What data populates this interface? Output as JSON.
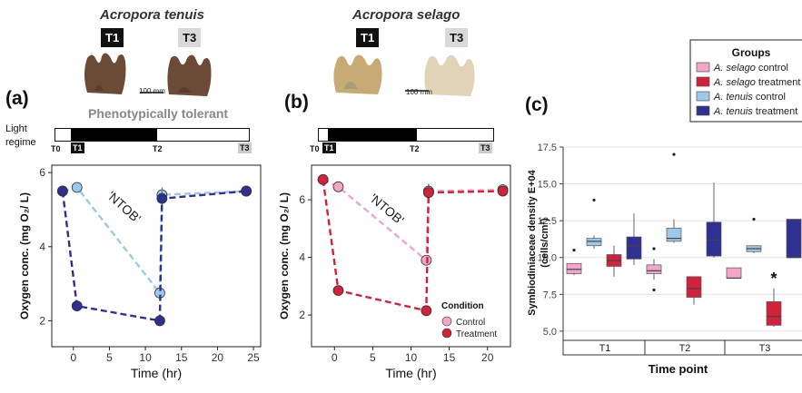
{
  "header": {
    "species_left": "Acropora tenuis",
    "species_right": "Acropora selago",
    "tag_t1": "T1",
    "tag_t3": "T3",
    "scale_label": "100 mm",
    "pheno_label": "Phenotypically tolerant",
    "regime_label_line1": "Light",
    "regime_label_line2": "regime"
  },
  "panel_labels": {
    "a": "(a)",
    "b": "(b)",
    "c": "(c)"
  },
  "timeline": {
    "t0": "T0",
    "t1": "T1",
    "t2": "T2",
    "t3": "T3"
  },
  "colors": {
    "tenuis_control": "#9cc9ea",
    "tenuis_treatment": "#2e3092",
    "selago_control": "#f2a6c8",
    "selago_treatment": "#d2213a"
  },
  "chart_data": [
    {
      "id": "a",
      "type": "line",
      "xlabel": "Time (hr)",
      "ylabel": "Oxygen conc. (mg O₂/ L)",
      "xlim": [
        -3,
        26
      ],
      "ylim": [
        1.3,
        6.2
      ],
      "xticks": [
        0,
        5,
        10,
        15,
        20,
        25
      ],
      "yticks": [
        2,
        4,
        6
      ],
      "annotation": "'NTOB'",
      "series": [
        {
          "role": "control",
          "color": "#9cc9ea",
          "points": [
            [
              -1.5,
              5.5
            ],
            [
              0.5,
              5.6
            ],
            [
              12,
              2.75
            ],
            [
              12.3,
              5.4
            ],
            [
              24,
              5.5
            ]
          ]
        },
        {
          "role": "treatment",
          "color": "#2e3092",
          "points": [
            [
              -1.5,
              5.5
            ],
            [
              0.5,
              2.4
            ],
            [
              12,
              2.0
            ],
            [
              12.3,
              5.3
            ],
            [
              24,
              5.5
            ]
          ]
        }
      ]
    },
    {
      "id": "b",
      "type": "line",
      "xlabel": "Time (hr)",
      "ylabel": "Oxygen conc. (mg O₂/ L)",
      "xlim": [
        -3,
        23
      ],
      "ylim": [
        0.9,
        7.2
      ],
      "xticks": [
        0,
        5,
        10,
        15,
        20
      ],
      "yticks": [
        2,
        4,
        6
      ],
      "annotation": "'NTOB'",
      "legend_title": "Condition",
      "legend_items": [
        "Control",
        "Treatment"
      ],
      "series": [
        {
          "role": "control",
          "color": "#f2a6c8",
          "points": [
            [
              -1.5,
              6.7
            ],
            [
              0.5,
              6.45
            ],
            [
              12,
              3.9
            ],
            [
              12.3,
              6.3
            ],
            [
              22,
              6.35
            ]
          ]
        },
        {
          "role": "treatment",
          "color": "#d2213a",
          "points": [
            [
              -1.5,
              6.7
            ],
            [
              0.5,
              2.85
            ],
            [
              12,
              2.15
            ],
            [
              12.3,
              6.25
            ],
            [
              22,
              6.3
            ]
          ]
        }
      ]
    },
    {
      "id": "c",
      "type": "box",
      "ylabel": "Symbiodiniaceae density E+04",
      "ylabel_unit": "(cells/cm²)",
      "xlabel": "Time point",
      "ylim": [
        4.5,
        17.5
      ],
      "yticks": [
        5.0,
        7.5,
        10.0,
        12.5,
        15.0,
        17.5
      ],
      "categories": [
        "T1",
        "T2",
        "T3"
      ],
      "legend_title": "Groups",
      "legend": [
        {
          "species": "A. selago",
          "suffix": " control",
          "color": "#f2a6c8"
        },
        {
          "species": "A. selago",
          "suffix": " treatment",
          "color": "#d2213a"
        },
        {
          "species": "A. tenuis",
          "suffix": " control",
          "color": "#9cc9ea"
        },
        {
          "species": "A. tenuis",
          "suffix": " treatment",
          "color": "#2e3092"
        }
      ],
      "significance": "*",
      "boxes": {
        "T1": [
          {
            "group": "selago_control",
            "min": 8.8,
            "q1": 8.9,
            "median": 9.2,
            "q3": 9.6,
            "max": 9.6,
            "outliers": [
              10.5
            ]
          },
          {
            "group": "tenuis_control",
            "min": 10.6,
            "q1": 10.8,
            "median": 11.1,
            "q3": 11.3,
            "max": 11.5,
            "outliers": [
              13.9
            ]
          },
          {
            "group": "selago_treatment",
            "min": 8.7,
            "q1": 9.4,
            "median": 9.8,
            "q3": 10.2,
            "max": 10.8,
            "outliers": []
          },
          {
            "group": "tenuis_treatment",
            "min": 9.5,
            "q1": 9.9,
            "median": 10.8,
            "q3": 11.4,
            "max": 13.0,
            "outliers": []
          }
        ],
        "T2": [
          {
            "group": "selago_control",
            "min": 8.5,
            "q1": 8.9,
            "median": 9.1,
            "q3": 9.5,
            "max": 9.9,
            "outliers": [
              10.6,
              7.8
            ]
          },
          {
            "group": "tenuis_control",
            "min": 11.0,
            "q1": 11.1,
            "median": 11.3,
            "q3": 12.0,
            "max": 12.6,
            "outliers": [
              17.0
            ]
          },
          {
            "group": "selago_treatment",
            "min": 6.8,
            "q1": 7.3,
            "median": 7.9,
            "q3": 8.7,
            "max": 8.7,
            "outliers": []
          },
          {
            "group": "tenuis_treatment",
            "min": 10.0,
            "q1": 10.1,
            "median": 11.2,
            "q3": 12.4,
            "max": 15.1,
            "outliers": []
          }
        ],
        "T3": [
          {
            "group": "selago_control",
            "min": 8.6,
            "q1": 8.6,
            "median": 8.6,
            "q3": 9.3,
            "max": 9.3,
            "outliers": []
          },
          {
            "group": "tenuis_control",
            "min": 10.3,
            "q1": 10.4,
            "median": 10.6,
            "q3": 10.8,
            "max": 10.8,
            "outliers": [
              12.6
            ]
          },
          {
            "group": "selago_treatment",
            "min": 5.3,
            "q1": 5.4,
            "median": 6.0,
            "q3": 7.0,
            "max": 7.9,
            "outliers": []
          },
          {
            "group": "tenuis_treatment",
            "min": 10.0,
            "q1": 10.0,
            "median": 10.0,
            "q3": 12.6,
            "max": 12.6,
            "outliers": []
          }
        ]
      }
    }
  ]
}
